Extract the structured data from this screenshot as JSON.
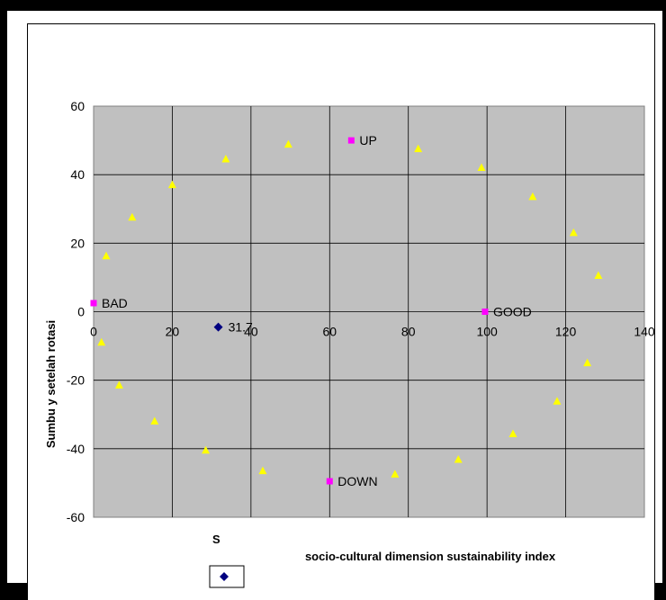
{
  "chart_data": {
    "type": "scatter",
    "title": "",
    "xlabel": "socio-cultural dimension sustainability index",
    "xlabel_fragment": "S",
    "ylabel": "Sumbu y setelah rotasi",
    "xlim": [
      0,
      140
    ],
    "ylim": [
      -60,
      60
    ],
    "x_ticks": [
      0,
      20,
      40,
      60,
      80,
      100,
      120,
      140
    ],
    "y_ticks": [
      -60,
      -40,
      -20,
      0,
      20,
      40,
      60
    ],
    "grid": true,
    "legend": "bottom",
    "colors": {
      "plot_bg": "#c0c0c0",
      "triangle": "#ffff00",
      "anchor": "#ff00ff",
      "index": "#000080"
    },
    "anchors": [
      {
        "label": "BAD",
        "x": 0,
        "y": 2.5
      },
      {
        "label": "UP",
        "x": 65.5,
        "y": 50
      },
      {
        "label": "GOOD",
        "x": 99.5,
        "y": 0
      },
      {
        "label": "DOWN",
        "x": 60,
        "y": -49.5
      }
    ],
    "index_point": {
      "label": "31.7",
      "x": 31.7,
      "y": -4.5
    },
    "triangles": [
      {
        "x": 3.2,
        "y": 16.2
      },
      {
        "x": 9.8,
        "y": 27.5
      },
      {
        "x": 20,
        "y": 37
      },
      {
        "x": 33.6,
        "y": 44.5
      },
      {
        "x": 49.5,
        "y": 48.8
      },
      {
        "x": 82.5,
        "y": 47.5
      },
      {
        "x": 98.6,
        "y": 42
      },
      {
        "x": 111.6,
        "y": 33.5
      },
      {
        "x": 122,
        "y": 23
      },
      {
        "x": 128.3,
        "y": 10.5
      },
      {
        "x": 2,
        "y": -9
      },
      {
        "x": 6.5,
        "y": -21.5
      },
      {
        "x": 15.5,
        "y": -32
      },
      {
        "x": 28.5,
        "y": -40.5
      },
      {
        "x": 43,
        "y": -46.5
      },
      {
        "x": 76.6,
        "y": -47.5
      },
      {
        "x": 92.7,
        "y": -43.2
      },
      {
        "x": 106.6,
        "y": -35.7
      },
      {
        "x": 117.8,
        "y": -26.2
      },
      {
        "x": 125.5,
        "y": -15
      }
    ]
  }
}
